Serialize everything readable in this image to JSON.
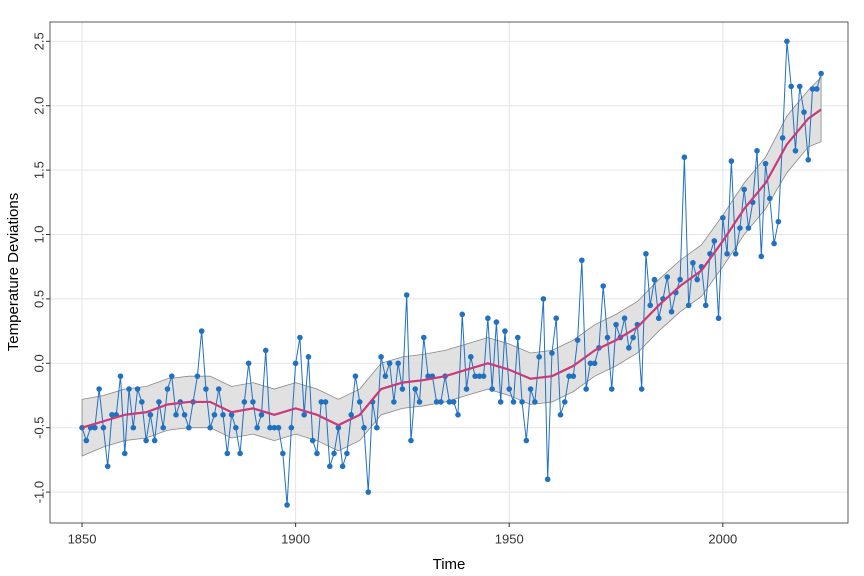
{
  "chart_data": {
    "type": "line",
    "x_label": "Time",
    "y_label": "Temperature Deviations",
    "x": [
      1850,
      1851,
      1852,
      1853,
      1854,
      1855,
      1856,
      1857,
      1858,
      1859,
      1860,
      1861,
      1862,
      1863,
      1864,
      1865,
      1866,
      1867,
      1868,
      1869,
      1870,
      1871,
      1872,
      1873,
      1874,
      1875,
      1876,
      1877,
      1878,
      1879,
      1880,
      1881,
      1882,
      1883,
      1884,
      1885,
      1886,
      1887,
      1888,
      1889,
      1890,
      1891,
      1892,
      1893,
      1894,
      1895,
      1896,
      1897,
      1898,
      1899,
      1900,
      1901,
      1902,
      1903,
      1904,
      1905,
      1906,
      1907,
      1908,
      1909,
      1910,
      1911,
      1912,
      1913,
      1914,
      1915,
      1916,
      1917,
      1918,
      1919,
      1920,
      1921,
      1922,
      1923,
      1924,
      1925,
      1926,
      1927,
      1928,
      1929,
      1930,
      1931,
      1932,
      1933,
      1934,
      1935,
      1936,
      1937,
      1938,
      1939,
      1940,
      1941,
      1942,
      1943,
      1944,
      1945,
      1946,
      1947,
      1948,
      1949,
      1950,
      1951,
      1952,
      1953,
      1954,
      1955,
      1956,
      1957,
      1958,
      1959,
      1960,
      1961,
      1962,
      1963,
      1964,
      1965,
      1966,
      1967,
      1968,
      1969,
      1970,
      1971,
      1972,
      1973,
      1974,
      1975,
      1976,
      1977,
      1978,
      1979,
      1980,
      1981,
      1982,
      1983,
      1984,
      1985,
      1986,
      1987,
      1988,
      1989,
      1990,
      1991,
      1992,
      1993,
      1994,
      1995,
      1996,
      1997,
      1998,
      1999,
      2000,
      2001,
      2002,
      2003,
      2004,
      2005,
      2006,
      2007,
      2008,
      2009,
      2010,
      2011,
      2012,
      2013,
      2014,
      2015,
      2016,
      2017,
      2018,
      2019,
      2020,
      2021,
      2022,
      2023
    ],
    "series": [
      {
        "color": "#2171c1",
        "values": [
          -0.5,
          -0.6,
          -0.5,
          -0.5,
          -0.2,
          -0.5,
          -0.8,
          -0.4,
          -0.4,
          -0.1,
          -0.7,
          -0.2,
          -0.5,
          -0.2,
          -0.3,
          -0.6,
          -0.4,
          -0.6,
          -0.3,
          -0.5,
          -0.2,
          -0.1,
          -0.4,
          -0.3,
          -0.4,
          -0.5,
          -0.3,
          -0.1,
          0.25,
          -0.2,
          -0.5,
          -0.4,
          -0.2,
          -0.4,
          -0.7,
          -0.4,
          -0.5,
          -0.7,
          -0.3,
          0.0,
          -0.3,
          -0.5,
          -0.4,
          0.1,
          -0.5,
          -0.5,
          -0.5,
          -0.7,
          -1.1,
          -0.5,
          0.0,
          0.2,
          -0.4,
          0.05,
          -0.6,
          -0.7,
          -0.3,
          -0.3,
          -0.8,
          -0.7,
          -0.5,
          -0.8,
          -0.7,
          -0.4,
          -0.1,
          -0.3,
          -0.5,
          -1.0,
          -0.3,
          -0.5,
          0.05,
          -0.1,
          0.0,
          -0.3,
          0.0,
          -0.2,
          0.53,
          -0.6,
          -0.2,
          -0.3,
          0.2,
          -0.1,
          -0.1,
          -0.3,
          -0.3,
          -0.1,
          -0.3,
          -0.3,
          -0.4,
          0.38,
          -0.2,
          0.05,
          -0.1,
          -0.1,
          -0.1,
          0.35,
          -0.2,
          0.32,
          -0.3,
          0.25,
          -0.2,
          -0.3,
          0.2,
          -0.3,
          -0.6,
          -0.2,
          -0.3,
          0.05,
          0.5,
          -0.9,
          0.08,
          0.35,
          -0.4,
          -0.3,
          -0.1,
          -0.1,
          0.18,
          0.8,
          -0.2,
          0.0,
          0.0,
          0.12,
          0.6,
          0.2,
          -0.2,
          0.3,
          0.2,
          0.35,
          0.12,
          0.2,
          0.3,
          -0.2,
          0.85,
          0.45,
          0.65,
          0.35,
          0.5,
          0.67,
          0.4,
          0.55,
          0.65,
          1.6,
          0.45,
          0.78,
          0.65,
          0.75,
          0.45,
          0.85,
          0.95,
          0.35,
          1.13,
          0.85,
          1.57,
          0.85,
          1.05,
          1.35,
          1.05,
          1.25,
          1.65,
          0.83,
          1.55,
          1.28,
          0.93,
          1.1,
          1.75,
          2.5,
          2.15,
          1.65,
          2.15,
          1.95,
          1.58,
          2.13,
          2.13,
          2.25
        ]
      }
    ],
    "trend": {
      "color": "#c83a7a",
      "band_color": "#d9d9d9",
      "x": [
        1850,
        1855,
        1860,
        1865,
        1870,
        1875,
        1880,
        1885,
        1890,
        1895,
        1900,
        1905,
        1910,
        1915,
        1920,
        1925,
        1930,
        1935,
        1940,
        1945,
        1950,
        1955,
        1960,
        1965,
        1970,
        1975,
        1980,
        1985,
        1990,
        1995,
        2000,
        2005,
        2010,
        2015,
        2020,
        2023
      ],
      "values": [
        -0.5,
        -0.45,
        -0.4,
        -0.38,
        -0.32,
        -0.3,
        -0.3,
        -0.38,
        -0.35,
        -0.4,
        -0.35,
        -0.4,
        -0.48,
        -0.4,
        -0.2,
        -0.15,
        -0.13,
        -0.1,
        -0.05,
        0.0,
        -0.05,
        -0.12,
        -0.1,
        -0.02,
        0.1,
        0.18,
        0.28,
        0.45,
        0.6,
        0.72,
        0.95,
        1.2,
        1.4,
        1.7,
        1.9,
        1.97
      ],
      "lower": [
        -0.72,
        -0.65,
        -0.6,
        -0.58,
        -0.52,
        -0.5,
        -0.5,
        -0.58,
        -0.55,
        -0.6,
        -0.55,
        -0.6,
        -0.68,
        -0.6,
        -0.4,
        -0.35,
        -0.33,
        -0.3,
        -0.25,
        -0.2,
        -0.25,
        -0.32,
        -0.3,
        -0.22,
        -0.1,
        -0.02,
        0.08,
        0.25,
        0.4,
        0.52,
        0.75,
        1.0,
        1.2,
        1.48,
        1.68,
        1.72
      ],
      "upper": [
        -0.28,
        -0.25,
        -0.2,
        -0.18,
        -0.12,
        -0.1,
        -0.1,
        -0.18,
        -0.15,
        -0.2,
        -0.15,
        -0.2,
        -0.28,
        -0.2,
        0.0,
        0.05,
        0.07,
        0.1,
        0.15,
        0.2,
        0.15,
        0.08,
        0.1,
        0.18,
        0.3,
        0.38,
        0.48,
        0.65,
        0.8,
        0.92,
        1.15,
        1.4,
        1.6,
        1.92,
        2.12,
        2.22
      ]
    },
    "xlim": [
      1842.5,
      2029.3
    ],
    "ylim": [
      -1.24,
      2.65
    ],
    "xticks": [
      1850,
      1900,
      1950,
      2000
    ],
    "yticks": [
      {
        "value": -1,
        "label": "-1.0"
      },
      -0.5,
      {
        "value": 0,
        "label": "0.0"
      },
      0.5,
      {
        "value": 1,
        "label": "1.0"
      },
      1.5,
      {
        "value": 2,
        "label": "2.0"
      },
      2.5
    ],
    "grid": true
  }
}
